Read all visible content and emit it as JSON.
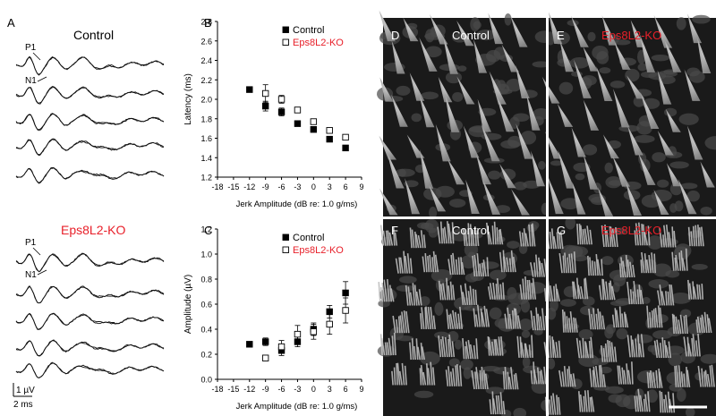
{
  "panel_labels": {
    "A": "A",
    "B": "B",
    "C": "C",
    "D": "D",
    "E": "E",
    "F": "F",
    "G": "G"
  },
  "panel_a": {
    "control_title": "Control",
    "ko_title": "Eps8L2-KO",
    "peak_p1": "P1",
    "peak_n1": "N1",
    "scale_voltage": "1 µV",
    "scale_time": "2 ms"
  },
  "micrographs": {
    "D": "Control",
    "E": "Eps8L2-KO",
    "F": "Control",
    "G": "Eps8L2-KO"
  },
  "colors": {
    "control": "#000000",
    "ko": "#e8202a",
    "micrograph_dark": "#1a1a1a",
    "micrograph_light": "#bdbdbd"
  },
  "chart_data": [
    {
      "panel": "B",
      "type": "scatter",
      "xlabel": "Jerk Amplitude (dB re: 1.0 g/ms)",
      "ylabel": "Latency (ms)",
      "xlim": [
        -18,
        9
      ],
      "ylim": [
        1.2,
        2.8
      ],
      "xticks": [
        "-18",
        "-15",
        "-12",
        "-9",
        "-6",
        "-3",
        "0",
        "3",
        "6",
        "9"
      ],
      "yticks": [
        "1.2",
        "1.4",
        "1.6",
        "1.8",
        "2.0",
        "2.2",
        "2.4",
        "2.6",
        "2.8"
      ],
      "legend_position": "top-right",
      "series": [
        {
          "name": "Control",
          "marker": "filled-square",
          "points": [
            {
              "x": -12,
              "y": 2.1,
              "err": 0
            },
            {
              "x": -9,
              "y": 1.93,
              "err": 0.05
            },
            {
              "x": -6,
              "y": 1.87,
              "err": 0.04
            },
            {
              "x": -3,
              "y": 1.75,
              "err": 0.01
            },
            {
              "x": 0,
              "y": 1.69,
              "err": 0.01
            },
            {
              "x": 3,
              "y": 1.59,
              "err": 0.02
            },
            {
              "x": 6,
              "y": 1.5,
              "err": 0.01
            }
          ]
        },
        {
          "name": "Eps8L2-KO",
          "marker": "open-square",
          "points": [
            {
              "x": -9,
              "y": 2.06,
              "err": 0.09
            },
            {
              "x": -6,
              "y": 2.0,
              "err": 0.04
            },
            {
              "x": -3,
              "y": 1.89,
              "err": 0.02
            },
            {
              "x": 0,
              "y": 1.77,
              "err": 0.01
            },
            {
              "x": 3,
              "y": 1.68,
              "err": 0.01
            },
            {
              "x": 6,
              "y": 1.61,
              "err": 0.01
            }
          ]
        }
      ]
    },
    {
      "panel": "C",
      "type": "scatter",
      "xlabel": "Jerk Amplitude (dB re: 1.0 g/ms)",
      "ylabel": "Amplitude (µV)",
      "xlim": [
        -18,
        9
      ],
      "ylim": [
        0.0,
        1.2
      ],
      "xticks": [
        "-18",
        "-15",
        "-12",
        "-9",
        "-6",
        "-3",
        "0",
        "3",
        "6",
        "9"
      ],
      "yticks": [
        "0.0",
        "0.2",
        "0.4",
        "0.6",
        "0.8",
        "1.0",
        "1.2"
      ],
      "legend_position": "top-right",
      "series": [
        {
          "name": "Control",
          "marker": "filled-square",
          "points": [
            {
              "x": -12,
              "y": 0.28,
              "err": 0
            },
            {
              "x": -9,
              "y": 0.3,
              "err": 0.03
            },
            {
              "x": -6,
              "y": 0.23,
              "err": 0.04
            },
            {
              "x": -3,
              "y": 0.3,
              "err": 0.04
            },
            {
              "x": 0,
              "y": 0.4,
              "err": 0.05
            },
            {
              "x": 3,
              "y": 0.54,
              "err": 0.05
            },
            {
              "x": 6,
              "y": 0.69,
              "err": 0.09
            }
          ]
        },
        {
          "name": "Eps8L2-KO",
          "marker": "open-square",
          "points": [
            {
              "x": -9,
              "y": 0.17,
              "err": 0.02
            },
            {
              "x": -6,
              "y": 0.26,
              "err": 0.05
            },
            {
              "x": -3,
              "y": 0.36,
              "err": 0.07
            },
            {
              "x": 0,
              "y": 0.38,
              "err": 0.06
            },
            {
              "x": 3,
              "y": 0.44,
              "err": 0.08
            },
            {
              "x": 6,
              "y": 0.55,
              "err": 0.1
            }
          ]
        }
      ]
    }
  ]
}
